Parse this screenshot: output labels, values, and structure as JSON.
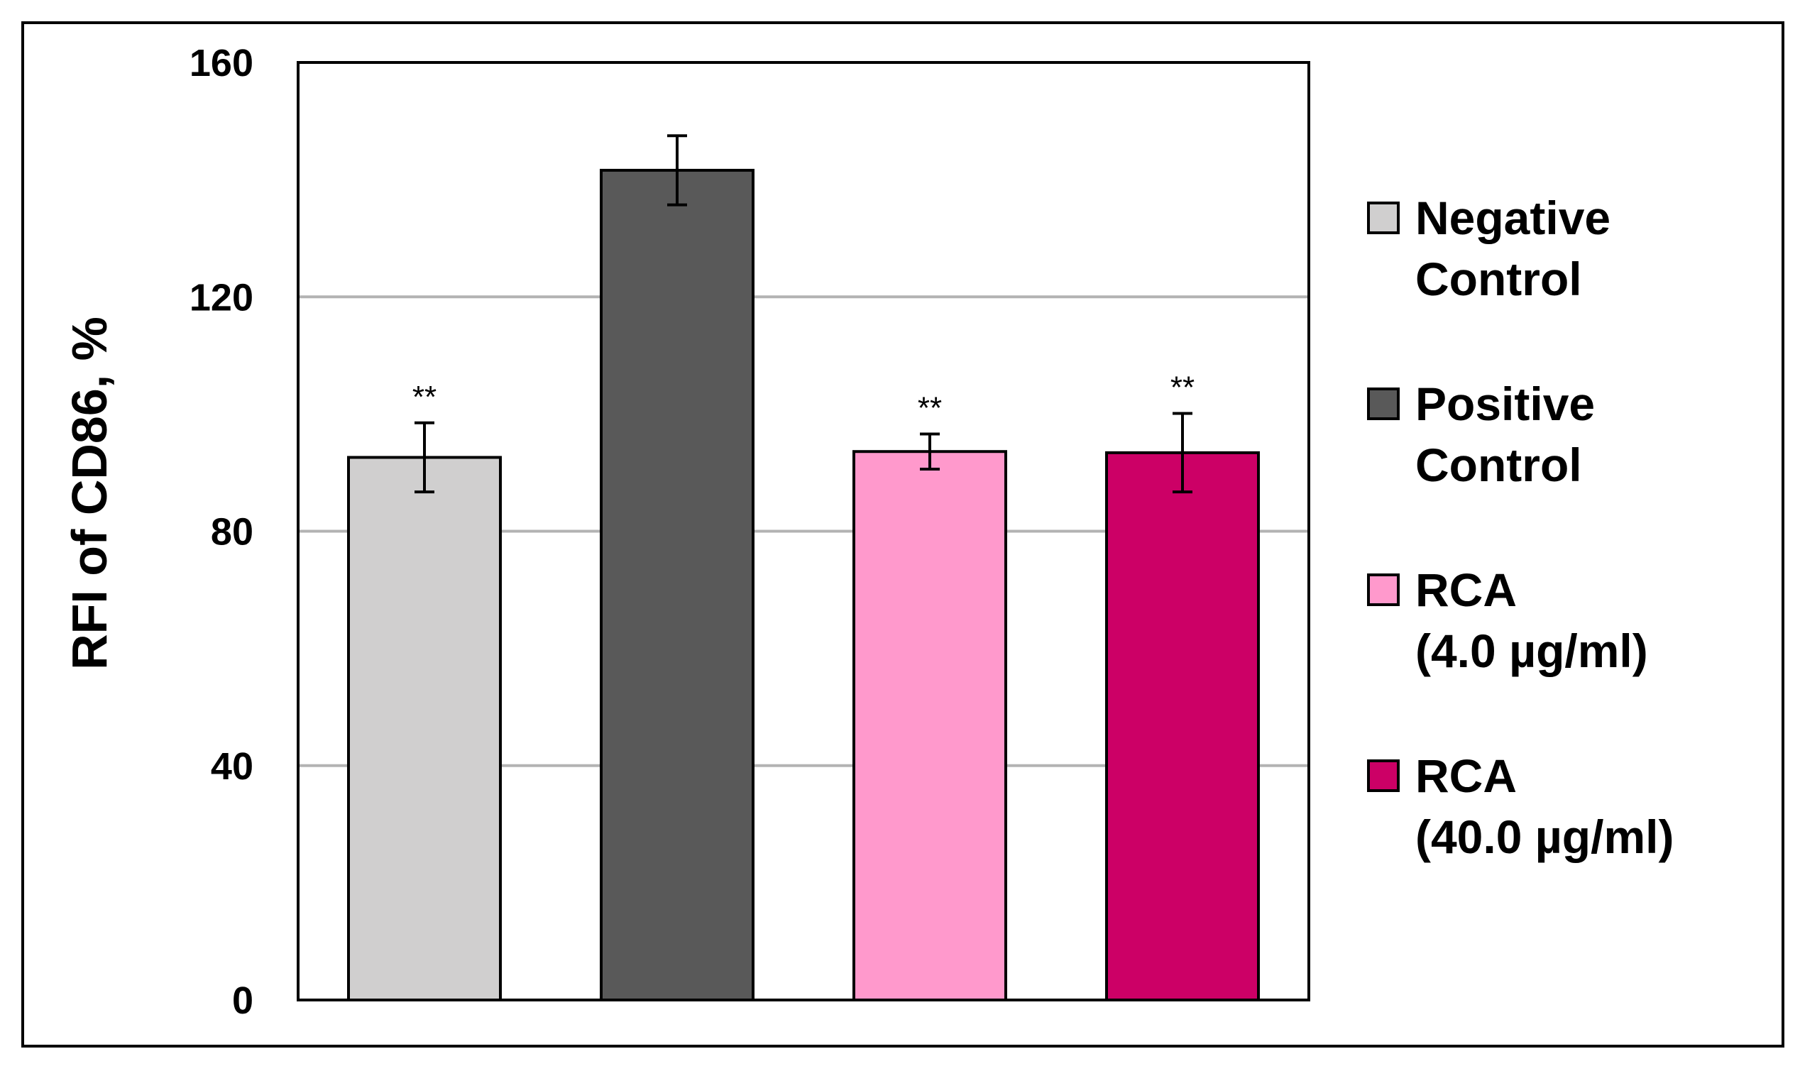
{
  "chart_data": {
    "type": "bar",
    "categories": [
      "Negative Control",
      "Positive Control",
      "RCA (4.0 µg/ml)",
      "RCA (40.0 µg/ml)"
    ],
    "values": [
      92.6,
      141.6,
      93.6,
      93.4
    ],
    "errors": [
      5.9,
      5.9,
      3.0,
      6.7
    ],
    "significance": [
      "**",
      "",
      "**",
      "**"
    ],
    "colors": [
      "#d0cfcf",
      "#595959",
      "#ff99cc",
      "#cc0066"
    ],
    "ylabel": "RFI of CD86, %",
    "xlabel": "",
    "ylim": [
      0,
      160
    ],
    "yticks": [
      "0",
      "40",
      "80",
      "120",
      "160"
    ],
    "grid": true,
    "legend": {
      "position": "right",
      "entries": [
        {
          "line1": "Negative",
          "line2": "Control",
          "color": "#d0cfcf"
        },
        {
          "line1": "Positive",
          "line2": "Control",
          "color": "#595959"
        },
        {
          "line1": "RCA",
          "line2": "(4.0 µg/ml)",
          "color": "#ff99cc"
        },
        {
          "line1": "RCA",
          "line2": "(40.0 µg/ml)",
          "color": "#cc0066"
        }
      ]
    }
  }
}
